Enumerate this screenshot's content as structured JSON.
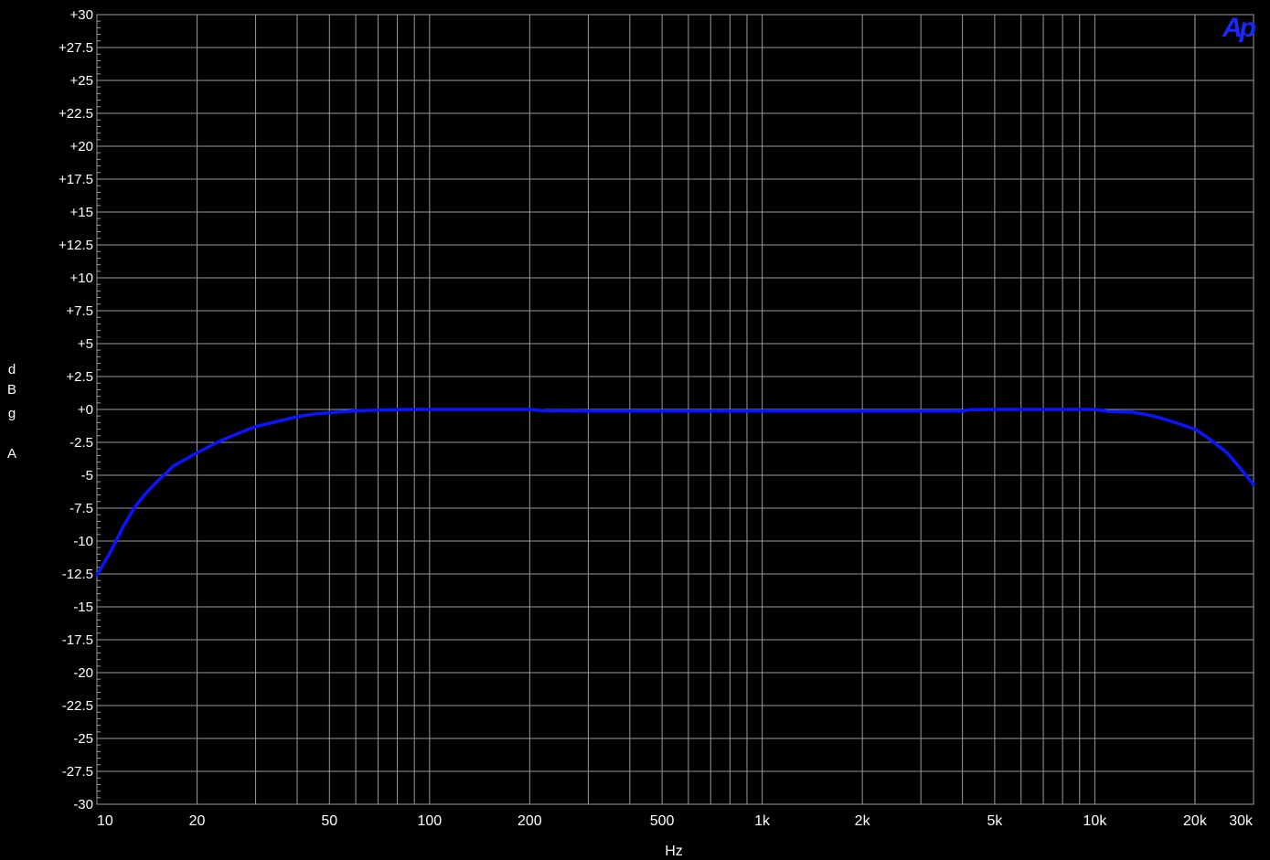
{
  "chart_data": {
    "type": "line",
    "xscale": "log",
    "xlim": [
      10,
      30000
    ],
    "ylim": [
      -30,
      30
    ],
    "grid": true,
    "xlabel": "Hz",
    "ylabel_chars": [
      "d",
      "B",
      "g",
      "A"
    ],
    "x_ticks": [
      {
        "value": 10,
        "label": "10"
      },
      {
        "value": 20,
        "label": "20"
      },
      {
        "value": 50,
        "label": "50"
      },
      {
        "value": 100,
        "label": "100"
      },
      {
        "value": 200,
        "label": "200"
      },
      {
        "value": 500,
        "label": "500"
      },
      {
        "value": 1000,
        "label": "1k"
      },
      {
        "value": 2000,
        "label": "2k"
      },
      {
        "value": 5000,
        "label": "5k"
      },
      {
        "value": 10000,
        "label": "10k"
      },
      {
        "value": 20000,
        "label": "20k"
      },
      {
        "value": 30000,
        "label": "30k"
      }
    ],
    "y_ticks": [
      {
        "value": 30,
        "label": "+30"
      },
      {
        "value": 27.5,
        "label": "+27.5"
      },
      {
        "value": 25,
        "label": "+25"
      },
      {
        "value": 22.5,
        "label": "+22.5"
      },
      {
        "value": 20,
        "label": "+20"
      },
      {
        "value": 17.5,
        "label": "+17.5"
      },
      {
        "value": 15,
        "label": "+15"
      },
      {
        "value": 12.5,
        "label": "+12.5"
      },
      {
        "value": 10,
        "label": "+10"
      },
      {
        "value": 7.5,
        "label": "+7.5"
      },
      {
        "value": 5,
        "label": "+5"
      },
      {
        "value": 2.5,
        "label": "+2.5"
      },
      {
        "value": 0,
        "label": "+0"
      },
      {
        "value": -2.5,
        "label": "-2.5"
      },
      {
        "value": -5,
        "label": "-5"
      },
      {
        "value": -7.5,
        "label": "-7.5"
      },
      {
        "value": -10,
        "label": "-10"
      },
      {
        "value": -12.5,
        "label": "-12.5"
      },
      {
        "value": -15,
        "label": "-15"
      },
      {
        "value": -17.5,
        "label": "-17.5"
      },
      {
        "value": -20,
        "label": "-20"
      },
      {
        "value": -22.5,
        "label": "-22.5"
      },
      {
        "value": -25,
        "label": "-25"
      },
      {
        "value": -27.5,
        "label": "-27.5"
      },
      {
        "value": -30,
        "label": "-30"
      }
    ],
    "series": [
      {
        "color": "#0a14ff",
        "x": [
          10,
          11,
          12,
          13,
          14,
          15,
          17,
          20,
          23,
          25,
          30,
          35,
          40,
          45,
          50,
          60,
          70,
          80,
          90,
          100,
          150,
          200,
          220,
          300,
          500,
          1000,
          2000,
          3000,
          4000,
          4200,
          5000,
          7000,
          10000,
          11000,
          13000,
          15000,
          17000,
          20000,
          22000,
          25000,
          27000,
          30000
        ],
        "y": [
          -12.6,
          -10.8,
          -8.9,
          -7.4,
          -6.4,
          -5.6,
          -4.3,
          -3.3,
          -2.5,
          -2.1,
          -1.3,
          -0.9,
          -0.55,
          -0.35,
          -0.25,
          -0.1,
          -0.05,
          -0.02,
          0,
          0,
          0,
          0,
          -0.1,
          -0.12,
          -0.12,
          -0.12,
          -0.12,
          -0.12,
          -0.12,
          -0.02,
          0,
          0,
          0,
          -0.15,
          -0.2,
          -0.5,
          -0.9,
          -1.5,
          -2.2,
          -3.3,
          -4.3,
          -5.7
        ]
      }
    ]
  },
  "logo_text": "Ap",
  "colors": {
    "background": "#000000",
    "grid": "#9a9a9a",
    "logo": "#1a28ff"
  }
}
